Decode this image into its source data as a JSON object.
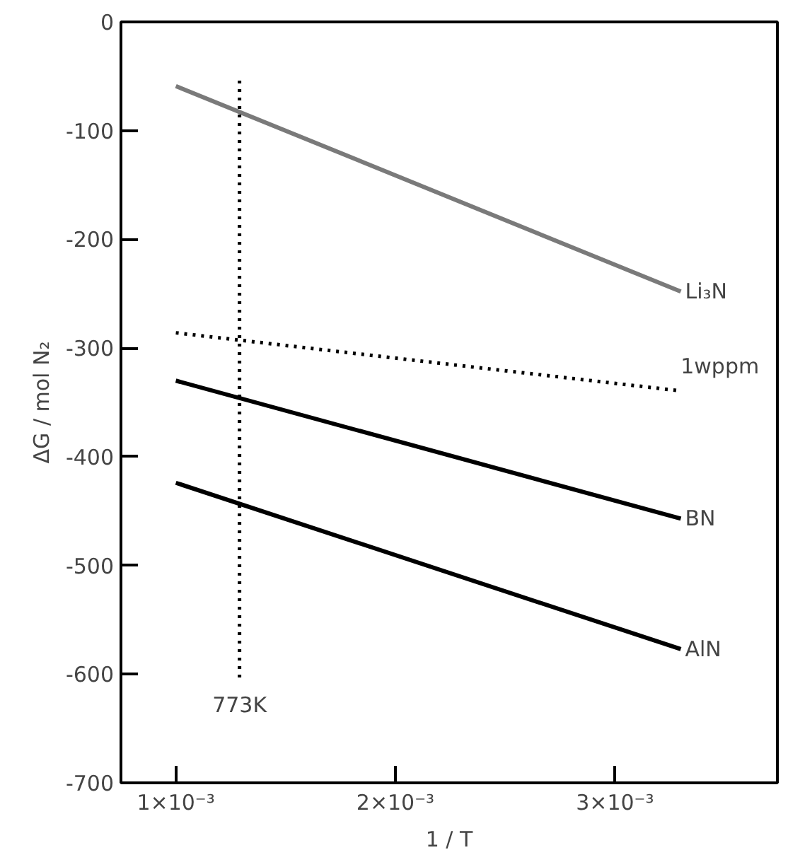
{
  "chart_data": {
    "type": "line",
    "xlabel": "1 / T",
    "ylabel": "ΔG / mol N₂",
    "xlim": [
      0.00075,
      0.00374
    ],
    "ylim": [
      -700,
      0
    ],
    "xticks": [
      {
        "value": 0.001,
        "label": "1×10⁻³"
      },
      {
        "value": 0.002,
        "label": "2×10⁻³"
      },
      {
        "value": 0.003,
        "label": "3×10⁻³"
      }
    ],
    "yticks": [
      -700,
      -600,
      -500,
      -400,
      -300,
      -200,
      -100,
      0
    ],
    "grid": false,
    "marker": "none",
    "series": [
      {
        "name": "Li₃N",
        "color": "#7a7a7a",
        "x": [
          0.001,
          0.0033
        ],
        "values": [
          -59,
          -248
        ],
        "line_style": "solid"
      },
      {
        "name": "1wppm",
        "color": "#000000",
        "x": [
          0.001,
          0.00328
        ],
        "values": [
          -286,
          -339
        ],
        "line_style": "dotted"
      },
      {
        "name": "BN",
        "color": "#000000",
        "x": [
          0.001,
          0.0033
        ],
        "values": [
          -330,
          -457
        ],
        "line_style": "solid"
      },
      {
        "name": "AlN",
        "color": "#000000",
        "x": [
          0.001,
          0.0033
        ],
        "values": [
          -424,
          -577
        ],
        "line_style": "solid"
      },
      {
        "name": "773K",
        "color": "#000000",
        "x": [
          0.00129,
          0.00129
        ],
        "values": [
          -54,
          -604
        ],
        "line_style": "dotted"
      }
    ]
  }
}
